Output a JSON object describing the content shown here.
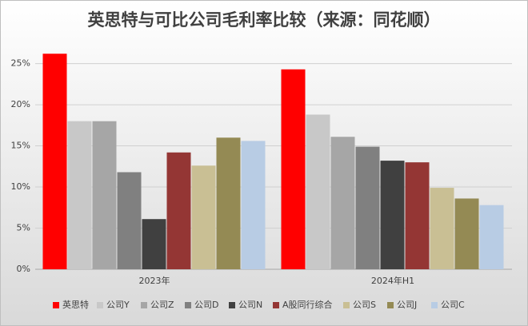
{
  "chart_data": {
    "type": "bar",
    "title": "英思特与可比公司毛利率比较（来源：同花顺）",
    "categories": [
      "2023年",
      "2024年H1"
    ],
    "series": [
      {
        "name": "英思特",
        "color": "#ff0000",
        "values": [
          26.2,
          24.3
        ]
      },
      {
        "name": "公司Y",
        "color": "#c8c8c8",
        "values": [
          18.0,
          18.8
        ]
      },
      {
        "name": "公司Z",
        "color": "#a6a6a6",
        "values": [
          18.0,
          16.1
        ]
      },
      {
        "name": "公司D",
        "color": "#808080",
        "values": [
          11.8,
          14.9
        ]
      },
      {
        "name": "公司N",
        "color": "#404040",
        "values": [
          6.1,
          13.2
        ]
      },
      {
        "name": "A股同行综合",
        "color": "#943634",
        "values": [
          14.2,
          13.0
        ]
      },
      {
        "name": "公司S",
        "color": "#c9bf94",
        "values": [
          12.6,
          9.9
        ]
      },
      {
        "name": "公司J",
        "color": "#948a54",
        "values": [
          16.0,
          8.6
        ]
      },
      {
        "name": "公司C",
        "color": "#b8cce4",
        "values": [
          15.6,
          7.8
        ]
      }
    ],
    "ylim": [
      0,
      27
    ],
    "yticks": [
      {
        "value": 0,
        "label": "0%"
      },
      {
        "value": 5,
        "label": "5%"
      },
      {
        "value": 10,
        "label": "10%"
      },
      {
        "value": 15,
        "label": "15%"
      },
      {
        "value": 20,
        "label": "20%"
      },
      {
        "value": 25,
        "label": "25%"
      }
    ],
    "grid": true,
    "legend": "bottom"
  }
}
